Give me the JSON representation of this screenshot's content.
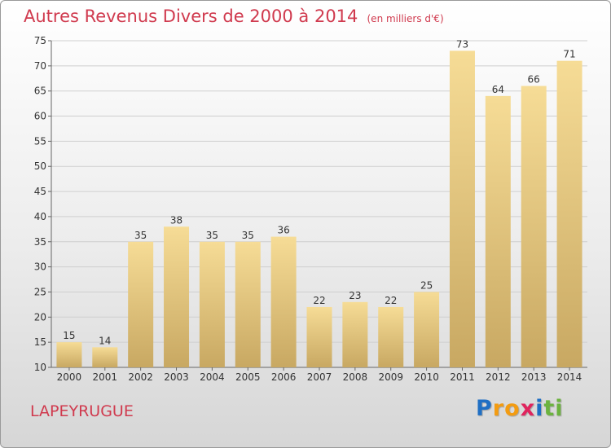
{
  "title": "Autres Revenus Divers de 2000 à 2014",
  "unit": "(en milliers d'€)",
  "place": "LAPEYRUGUE",
  "logo": {
    "letters": [
      {
        "ch": "P",
        "color": "#1f6fc4"
      },
      {
        "ch": "r",
        "color": "#f39c12"
      },
      {
        "ch": "o",
        "color": "#f39c12"
      },
      {
        "ch": "x",
        "color": "#e0245e"
      },
      {
        "ch": "i",
        "color": "#1f6fc4"
      },
      {
        "ch": "t",
        "color": "#6cb33f"
      },
      {
        "ch": "i",
        "color": "#6cb33f"
      }
    ]
  },
  "colors": {
    "bar_top": "#f6dc96",
    "bar_bottom": "#c8a862",
    "grid": "#cfcfcf"
  },
  "chart_data": {
    "type": "bar",
    "title": "Autres Revenus Divers de 2000 à 2014",
    "xlabel": "",
    "ylabel": "",
    "categories": [
      "2000",
      "2001",
      "2002",
      "2003",
      "2004",
      "2005",
      "2006",
      "2007",
      "2008",
      "2009",
      "2010",
      "2011",
      "2012",
      "2013",
      "2014"
    ],
    "values": [
      15,
      14,
      35,
      38,
      35,
      35,
      36,
      22,
      23,
      22,
      25,
      73,
      64,
      66,
      71
    ],
    "ylim": [
      10,
      75
    ],
    "yticks": [
      10,
      15,
      20,
      25,
      30,
      35,
      40,
      45,
      50,
      55,
      60,
      65,
      70,
      75
    ],
    "grid": true
  }
}
